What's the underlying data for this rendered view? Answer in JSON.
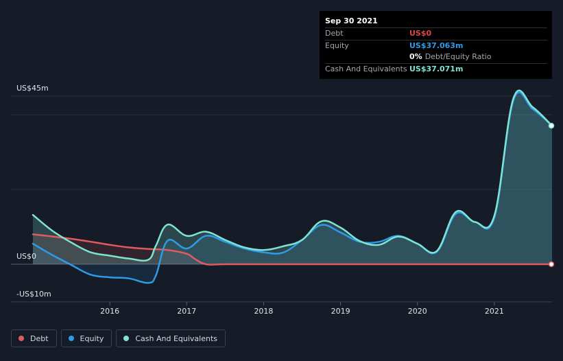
{
  "tooltip": {
    "date": "Sep 30 2021",
    "debt_label": "Debt",
    "debt_value": "US$0",
    "equity_label": "Equity",
    "equity_value": "US$37.063m",
    "ratio_value": "0%",
    "ratio_label": "Debt/Equity Ratio",
    "cash_label": "Cash And Equivalents",
    "cash_value": "US$37.071m"
  },
  "legend": {
    "debt": "Debt",
    "equity": "Equity",
    "cash": "Cash And Equivalents"
  },
  "colors": {
    "debt": "#e05a61",
    "equity": "#2f9be8",
    "cash": "#7ee3d3",
    "background": "#151b27"
  },
  "chart_data": {
    "type": "line",
    "title": "",
    "xlabel": "",
    "ylabel": "",
    "y_tick_labels": [
      "US$45m",
      "US$0",
      "-US$10m"
    ],
    "x_tick_labels": [
      "2016",
      "2017",
      "2018",
      "2019",
      "2020",
      "2021"
    ],
    "x_ticks": [
      2016,
      2017,
      2018,
      2019,
      2020,
      2021
    ],
    "xlim": [
      2015.0,
      2021.75
    ],
    "ylim": [
      -10,
      45
    ],
    "series": [
      {
        "name": "Debt",
        "x": [
          2015.0,
          2015.5,
          2016.0,
          2016.25,
          2016.5,
          2016.75,
          2017.0,
          2017.1,
          2017.25,
          2017.5,
          2018.0,
          2019.0,
          2020.0,
          2021.0,
          2021.75
        ],
        "values": [
          8,
          6.8,
          5.2,
          4.5,
          4.1,
          3.8,
          2.8,
          1.5,
          0,
          0,
          0,
          0,
          0,
          0,
          0
        ]
      },
      {
        "name": "Equity",
        "x": [
          2015.0,
          2015.25,
          2015.5,
          2015.75,
          2016.0,
          2016.25,
          2016.5,
          2016.6,
          2016.75,
          2017.0,
          2017.25,
          2017.5,
          2017.75,
          2018.0,
          2018.25,
          2018.5,
          2018.75,
          2019.0,
          2019.25,
          2019.5,
          2019.75,
          2020.0,
          2020.25,
          2020.5,
          2020.75,
          2021.0,
          2021.25,
          2021.5,
          2021.75
        ],
        "values": [
          5.5,
          2.5,
          -0.2,
          -2.8,
          -3.5,
          -3.8,
          -5.0,
          -3.0,
          6.3,
          4.2,
          7.6,
          6.0,
          4.2,
          3.2,
          3.1,
          6.5,
          10.5,
          8.5,
          6.0,
          6.0,
          7.6,
          5.5,
          3.3,
          13.5,
          11.3,
          12.5,
          44.0,
          41.5,
          37.063
        ]
      },
      {
        "name": "Cash And Equivalents",
        "x": [
          2015.0,
          2015.25,
          2015.5,
          2015.75,
          2016.0,
          2016.25,
          2016.5,
          2016.6,
          2016.75,
          2017.0,
          2017.25,
          2017.5,
          2017.75,
          2018.0,
          2018.25,
          2018.5,
          2018.75,
          2019.0,
          2019.25,
          2019.5,
          2019.75,
          2020.0,
          2020.25,
          2020.5,
          2020.75,
          2021.0,
          2021.25,
          2021.5,
          2021.75
        ],
        "values": [
          13.2,
          9.0,
          5.8,
          3.2,
          2.3,
          1.5,
          1.2,
          5.0,
          10.6,
          7.6,
          8.7,
          6.5,
          4.5,
          3.8,
          4.8,
          6.5,
          11.5,
          9.8,
          6.2,
          5.2,
          7.4,
          5.5,
          3.5,
          14.0,
          11.3,
          13.0,
          44.5,
          42.0,
          37.071
        ]
      }
    ]
  }
}
